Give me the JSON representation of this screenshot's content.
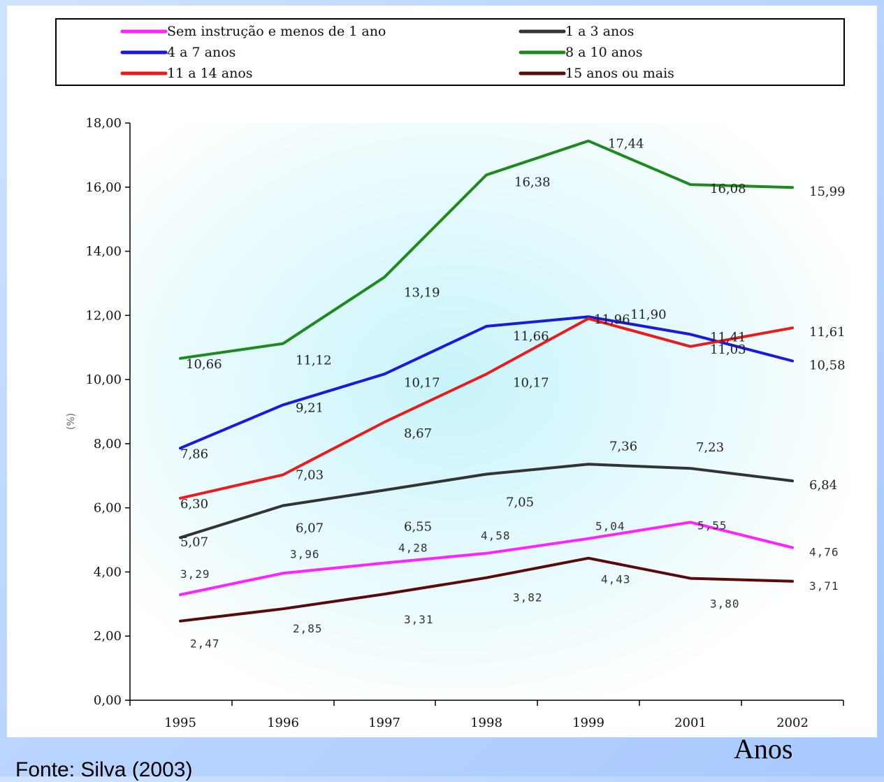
{
  "footer": {
    "source": "Fonte: Silva (2003)",
    "xlabel": "Anos"
  },
  "chart_data": {
    "type": "line",
    "title": "",
    "xlabel": "Anos",
    "ylabel": "(%)",
    "ylim": [
      0,
      18
    ],
    "y_ticks": [
      "0,00",
      "2,00",
      "4,00",
      "6,00",
      "8,00",
      "10,00",
      "12,00",
      "14,00",
      "16,00",
      "18,00"
    ],
    "categories": [
      "1995",
      "1996",
      "1997",
      "1998",
      "1999",
      "2001",
      "2002"
    ],
    "legend_position": "top",
    "series": [
      {
        "name": "Sem instrução e menos de 1 ano",
        "color": "#ff22ff",
        "values": [
          3.29,
          3.96,
          4.28,
          4.58,
          5.04,
          5.55,
          4.76
        ],
        "labels": [
          "3,29",
          "3,96",
          "4,28",
          "4,58",
          "5,04",
          "5,55",
          "4,76"
        ]
      },
      {
        "name": "1 a 3 anos",
        "color": "#333333",
        "values": [
          5.07,
          6.07,
          6.55,
          7.05,
          7.36,
          7.23,
          6.84
        ],
        "labels": [
          "5,07",
          "6,07",
          "6,55",
          "7,05",
          "7,36",
          "7,23",
          "6,84"
        ]
      },
      {
        "name": "4 a 7 anos",
        "color": "#1a1adb",
        "values": [
          7.86,
          9.21,
          10.17,
          11.66,
          11.96,
          11.41,
          10.58
        ],
        "labels": [
          "7,86",
          "9,21",
          "10,17",
          "11,66",
          "11,96",
          "11,41",
          "10,58"
        ]
      },
      {
        "name": "8 a 10 anos",
        "color": "#1e8a1e",
        "values": [
          10.66,
          11.12,
          13.19,
          16.38,
          17.44,
          16.08,
          15.99
        ],
        "labels": [
          "10,66",
          "11,12",
          "13,19",
          "16,38",
          "17,44",
          "16,08",
          "15,99"
        ]
      },
      {
        "name": "11 a 14 anos",
        "color": "#e81c1c",
        "values": [
          6.3,
          7.03,
          8.67,
          10.17,
          11.9,
          11.03,
          11.61
        ],
        "labels": [
          "6,30",
          "7,03",
          "8,67",
          "10,17",
          "11,90",
          "11,03",
          "11,61"
        ]
      },
      {
        "name": "15 anos ou mais",
        "color": "#5a0a0a",
        "values": [
          2.47,
          2.85,
          3.31,
          3.82,
          4.43,
          3.8,
          3.71
        ],
        "labels": [
          "2,47",
          "2,85",
          "3,31",
          "3,82",
          "4,43",
          "3,80",
          "3,71"
        ]
      }
    ]
  }
}
